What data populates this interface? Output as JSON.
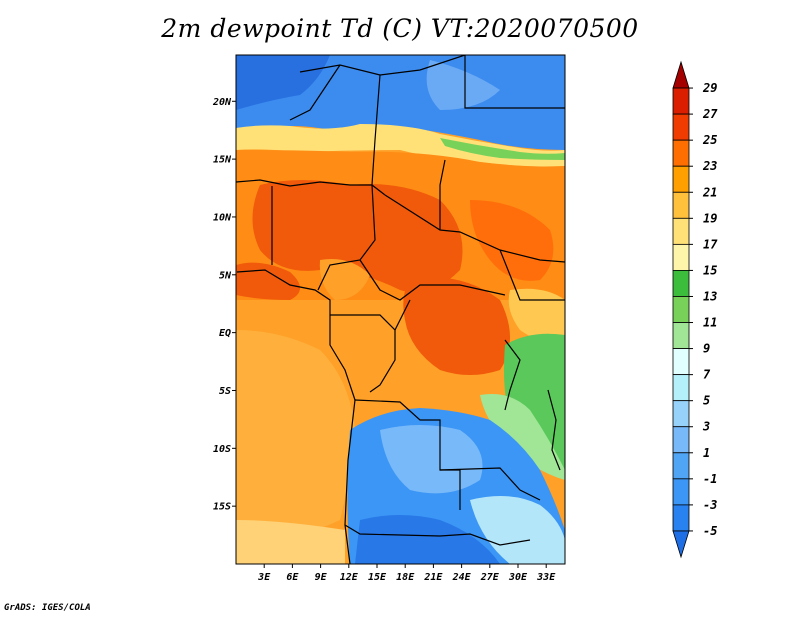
{
  "title": "2m dewpoint Td (C) VT:2020070500",
  "credit": "GrADS: IGES/COLA",
  "lat_ticks": [
    {
      "label": "20N",
      "lat": 20
    },
    {
      "label": "15N",
      "lat": 15
    },
    {
      "label": "10N",
      "lat": 10
    },
    {
      "label": "5N",
      "lat": 5
    },
    {
      "label": "EQ",
      "lat": 0
    },
    {
      "label": "5S",
      "lat": -5
    },
    {
      "label": "10S",
      "lat": -10
    },
    {
      "label": "15S",
      "lat": -15
    }
  ],
  "lon_ticks": [
    {
      "label": "3E",
      "lon": 3
    },
    {
      "label": "6E",
      "lon": 6
    },
    {
      "label": "9E",
      "lon": 9
    },
    {
      "label": "12E",
      "lon": 12
    },
    {
      "label": "15E",
      "lon": 15
    },
    {
      "label": "18E",
      "lon": 18
    },
    {
      "label": "21E",
      "lon": 21
    },
    {
      "label": "24E",
      "lon": 24
    },
    {
      "label": "27E",
      "lon": 27
    },
    {
      "label": "30E",
      "lon": 30
    },
    {
      "label": "33E",
      "lon": 33
    }
  ],
  "colorbar": {
    "levels": [
      "-5",
      "-3",
      "-1",
      "1",
      "3",
      "5",
      "7",
      "9",
      "11",
      "13",
      "15",
      "17",
      "19",
      "21",
      "23",
      "25",
      "27",
      "29"
    ],
    "colors": [
      "#1e6ee6",
      "#2882f0",
      "#3c96f5",
      "#50a5f5",
      "#78b9fa",
      "#96d2fa",
      "#b4f0fa",
      "#e1ffff",
      "#a0e696",
      "#78d25a",
      "#3cbe3c",
      "#fff5aa",
      "#ffe178",
      "#ffc03c",
      "#ff9f00",
      "#ff6e00",
      "#f03c00",
      "#dc1e00",
      "#a50000"
    ]
  }
}
